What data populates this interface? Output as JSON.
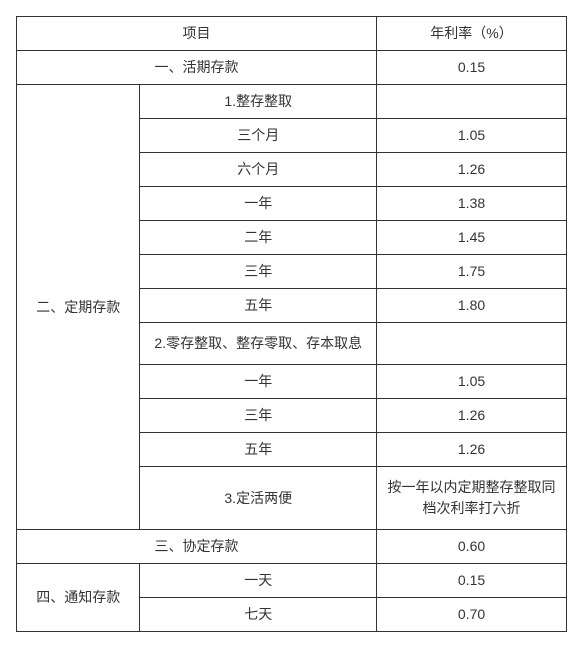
{
  "header": {
    "project": "项目",
    "rate": "年利率（%）"
  },
  "section1": {
    "label": "一、活期存款",
    "rate": "0.15"
  },
  "section2": {
    "label": "二、定期存款",
    "sub1": {
      "label": "1.整存整取",
      "rows": [
        {
          "term": "三个月",
          "rate": "1.05"
        },
        {
          "term": "六个月",
          "rate": "1.26"
        },
        {
          "term": "一年",
          "rate": "1.38"
        },
        {
          "term": "二年",
          "rate": "1.45"
        },
        {
          "term": "三年",
          "rate": "1.75"
        },
        {
          "term": "五年",
          "rate": "1.80"
        }
      ]
    },
    "sub2": {
      "label": "2.零存整取、整存零取、存本取息",
      "rows": [
        {
          "term": "一年",
          "rate": "1.05"
        },
        {
          "term": "三年",
          "rate": "1.26"
        },
        {
          "term": "五年",
          "rate": "1.26"
        }
      ]
    },
    "sub3": {
      "label": "3.定活两便",
      "rate": "按一年以内定期整存整取同档次利率打六折"
    }
  },
  "section3": {
    "label": "三、协定存款",
    "rate": "0.60"
  },
  "section4": {
    "label": "四、通知存款",
    "rows": [
      {
        "term": "一天",
        "rate": "0.15"
      },
      {
        "term": "七天",
        "rate": "0.70"
      }
    ]
  }
}
